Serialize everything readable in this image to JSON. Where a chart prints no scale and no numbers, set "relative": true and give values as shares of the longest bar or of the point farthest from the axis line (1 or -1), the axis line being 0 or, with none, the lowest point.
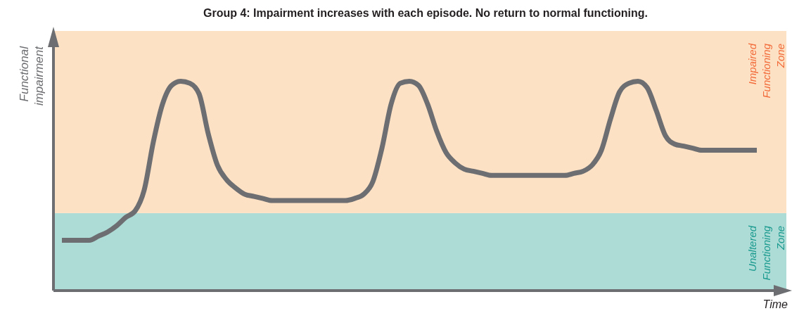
{
  "chart_data": {
    "type": "line",
    "title": "Group 4: Impairment increases with each episode. No return to normal functioning.",
    "xlabel": "Time",
    "ylabel": "Functional impairment",
    "relative": true,
    "categories": [
      null,
      null,
      null,
      null,
      null,
      null,
      null,
      null,
      null,
      null,
      null,
      null,
      null,
      null,
      null,
      null,
      null,
      null,
      null,
      null,
      null,
      null,
      null,
      null,
      null,
      null,
      null,
      null,
      null,
      null,
      null,
      null,
      null,
      null,
      null,
      null,
      null,
      null,
      null,
      null,
      null,
      null,
      null,
      null,
      null,
      null,
      null,
      null,
      null,
      null,
      null,
      null,
      null,
      null,
      null,
      null,
      null,
      null,
      null,
      null,
      null,
      null,
      null,
      null,
      null,
      null,
      null,
      null,
      null,
      null,
      null,
      null,
      null,
      null,
      null,
      null,
      null
    ],
    "series": [
      {
        "color": "#6d6e71",
        "values": [
          0.24,
          0.24,
          0.24,
          0.24,
          0.26,
          0.28,
          0.31,
          0.35,
          0.38,
          0.48,
          0.71,
          0.89,
          0.98,
          1,
          0.99,
          0.94,
          0.75,
          0.6,
          0.53,
          0.49,
          0.46,
          0.45,
          0.44,
          0.43,
          0.43,
          0.43,
          0.43,
          0.43,
          0.43,
          0.43,
          0.43,
          0.43,
          0.44,
          0.46,
          0.52,
          0.68,
          0.89,
          0.99,
          1,
          0.98,
          0.89,
          0.76,
          0.66,
          0.61,
          0.58,
          0.57,
          0.56,
          0.55,
          0.55,
          0.55,
          0.55,
          0.55,
          0.55,
          0.55,
          0.55,
          0.55,
          0.56,
          0.57,
          0.6,
          0.67,
          0.82,
          0.95,
          0.99,
          1,
          0.97,
          0.86,
          0.74,
          0.7,
          0.69,
          0.68,
          0.67,
          0.67,
          0.67,
          0.67,
          0.67,
          0.67,
          0.67
        ]
      }
    ],
    "bands": [
      {
        "axis": "y",
        "from": 0,
        "to": 0.37,
        "label": "Unaltered Functioning Zone",
        "color": "#addcd7"
      },
      {
        "axis": "y",
        "from": 0.37,
        "to": 1.24,
        "label": "Impaired Functioning Zone",
        "color": "#fde1c4"
      }
    ],
    "line_style": "solid"
  }
}
